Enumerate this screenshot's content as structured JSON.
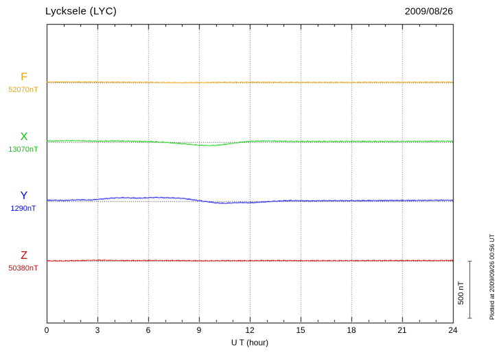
{
  "chart_data": {
    "type": "line",
    "title": "Lycksele (LYC)",
    "date": "2009/08/26",
    "xlabel": "U T (hour)",
    "x_start": 0,
    "x_end": 24,
    "x_step": 0.5,
    "x_ticks": [
      0,
      3,
      6,
      9,
      12,
      15,
      18,
      21,
      24
    ],
    "grid": "dotted-vertical-at-3h",
    "legend_position": "left-of-traces",
    "scale_bar_nT": 500,
    "scale_bar_label": "500 nT",
    "plotted_at": "Plotted at 2009/09/26 00:56 UT",
    "series": [
      {
        "name": "F",
        "baseline_label": "52070nT",
        "baseline_nT": 52070,
        "color": "#f0a500",
        "offsets_nT": [
          3,
          3,
          4,
          4,
          3,
          3,
          3,
          2,
          2,
          2,
          1,
          1,
          1,
          0,
          -1,
          -2,
          -3,
          -2,
          -2,
          -1,
          0,
          0,
          0,
          1,
          1,
          1,
          1,
          0,
          0,
          0,
          0,
          0,
          0,
          0,
          0,
          0,
          0,
          1,
          1,
          1,
          1,
          1,
          1,
          1,
          1,
          2,
          2,
          2,
          2
        ]
      },
      {
        "name": "X",
        "baseline_label": "13070nT",
        "baseline_nT": 13070,
        "color": "#00c800",
        "offsets_nT": [
          10,
          10,
          12,
          13,
          12,
          10,
          8,
          9,
          10,
          9,
          8,
          6,
          5,
          2,
          -2,
          -8,
          -14,
          -20,
          -26,
          -30,
          -28,
          -20,
          -10,
          0,
          6,
          9,
          10,
          9,
          8,
          7,
          6,
          6,
          6,
          6,
          6,
          6,
          7,
          7,
          6,
          6,
          6,
          6,
          6,
          7,
          7,
          7,
          8,
          8,
          8
        ]
      },
      {
        "name": "Y",
        "baseline_label": "1290nT",
        "baseline_nT": 1290,
        "color": "#0000e6",
        "offsets_nT": [
          8,
          8,
          6,
          10,
          12,
          10,
          15,
          22,
          28,
          30,
          28,
          26,
          30,
          32,
          30,
          28,
          25,
          15,
          5,
          -5,
          -15,
          -18,
          -15,
          -12,
          -14,
          -10,
          -5,
          0,
          3,
          5,
          3,
          2,
          3,
          4,
          4,
          4,
          4,
          4,
          5,
          5,
          5,
          6,
          6,
          6,
          7,
          7,
          8,
          8,
          8
        ]
      },
      {
        "name": "Z",
        "baseline_label": "50380nT",
        "baseline_nT": 50380,
        "color": "#d40000",
        "offsets_nT": [
          1,
          1,
          0,
          2,
          3,
          5,
          6,
          5,
          4,
          3,
          3,
          3,
          4,
          4,
          3,
          3,
          3,
          2,
          1,
          1,
          2,
          2,
          2,
          2,
          2,
          3,
          3,
          3,
          3,
          3,
          2,
          2,
          2,
          2,
          2,
          2,
          2,
          2,
          3,
          3,
          3,
          3,
          3,
          3,
          3,
          3,
          3,
          4,
          4
        ]
      }
    ]
  }
}
